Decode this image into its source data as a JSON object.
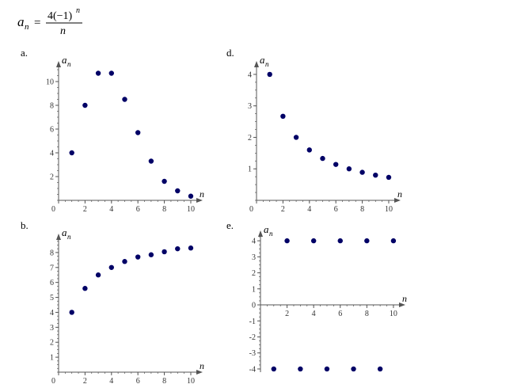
{
  "formula": {
    "lhs_symbol": "a",
    "lhs_subscript": "n",
    "equals": "=",
    "numerator_text": "4(−1)",
    "numerator_power": "n",
    "denominator": "n"
  },
  "colors": {
    "point": "#000066",
    "axis": "#555555",
    "text": "#000000"
  },
  "chart_data": [
    {
      "type": "scatter",
      "panel_label": "a.",
      "xlabel": "n",
      "ylabel_symbol": "a",
      "ylabel_subscript": "n",
      "xlim": [
        0,
        10.6
      ],
      "ylim": [
        0,
        11.4
      ],
      "x_ticks": [
        0,
        2,
        4,
        6,
        8,
        10
      ],
      "x_tick_labels": [
        "0",
        "2",
        "4",
        "6",
        "8",
        "10"
      ],
      "y_ticks": [
        2,
        4,
        6,
        8,
        10
      ],
      "y_tick_labels": [
        "2",
        "4",
        "6",
        "8",
        "10"
      ],
      "x_minor_step": 0.5,
      "y_minor_step": 0.5,
      "grid": false,
      "x": [
        1,
        2,
        3,
        4,
        5,
        6,
        7,
        8,
        9,
        10
      ],
      "y": [
        4,
        8,
        10.7,
        10.7,
        8.5,
        5.7,
        3.3,
        1.6,
        0.8,
        0.35
      ]
    },
    {
      "type": "scatter",
      "panel_label": "b.",
      "xlabel": "n",
      "ylabel_symbol": "a",
      "ylabel_subscript": "n",
      "xlim": [
        0,
        10.6
      ],
      "ylim": [
        0,
        9
      ],
      "x_ticks": [
        0,
        2,
        4,
        6,
        8,
        10
      ],
      "x_tick_labels": [
        "0",
        "2",
        "4",
        "6",
        "8",
        "10"
      ],
      "y_ticks": [
        1,
        2,
        3,
        4,
        5,
        6,
        7,
        8
      ],
      "y_tick_labels": [
        "1",
        "2",
        "3",
        "4",
        "5",
        "6",
        "7",
        "8"
      ],
      "x_minor_step": 0.5,
      "y_minor_step": 0.25,
      "grid": false,
      "x": [
        1,
        2,
        3,
        4,
        5,
        6,
        7,
        8,
        9,
        10
      ],
      "y": [
        4,
        5.6,
        6.5,
        7,
        7.4,
        7.7,
        7.85,
        8.05,
        8.25,
        8.3
      ]
    },
    {
      "type": "scatter",
      "panel_label": "d.",
      "xlabel": "n",
      "ylabel_symbol": "a",
      "ylabel_subscript": "n",
      "xlim": [
        0,
        10.6
      ],
      "ylim": [
        0,
        4.3
      ],
      "x_ticks": [
        0,
        2,
        4,
        6,
        8,
        10
      ],
      "x_tick_labels": [
        "0",
        "2",
        "4",
        "6",
        "8",
        "10"
      ],
      "y_ticks": [
        1,
        2,
        3,
        4
      ],
      "y_tick_labels": [
        "1",
        "2",
        "3",
        "4"
      ],
      "x_minor_step": 0.5,
      "y_minor_step": 0.25,
      "grid": false,
      "x": [
        1,
        2,
        3,
        4,
        5,
        6,
        7,
        8,
        9,
        10
      ],
      "y": [
        4,
        2.67,
        2,
        1.6,
        1.33,
        1.14,
        1,
        0.89,
        0.8,
        0.73
      ]
    },
    {
      "type": "scatter",
      "panel_label": "e.",
      "xlabel": "n",
      "ylabel_symbol": "a",
      "ylabel_subscript": "n",
      "xlim": [
        0,
        10.6
      ],
      "ylim": [
        -4.2,
        4.4
      ],
      "x_ticks": [
        2,
        4,
        6,
        8,
        10
      ],
      "x_tick_labels": [
        "2",
        "4",
        "6",
        "8",
        "10"
      ],
      "y_ticks": [
        -4,
        -3,
        -2,
        -1,
        0,
        1,
        2,
        3,
        4
      ],
      "y_tick_labels": [
        "-4",
        "-3",
        "-2",
        "-1",
        "0",
        "1",
        "2",
        "3",
        "4"
      ],
      "x_minor_step": 0.5,
      "y_minor_step": 0.25,
      "grid": false,
      "x": [
        1,
        2,
        3,
        4,
        5,
        6,
        7,
        8,
        9,
        10
      ],
      "y": [
        -4,
        4,
        -4,
        4,
        -4,
        4,
        -4,
        4,
        -4,
        4
      ]
    }
  ]
}
